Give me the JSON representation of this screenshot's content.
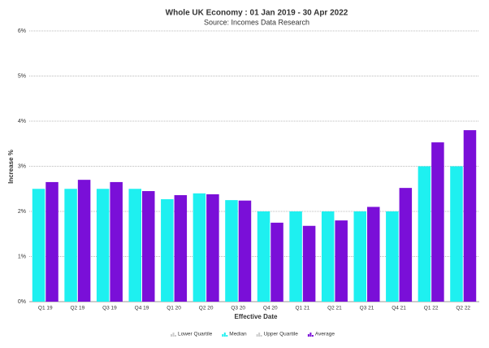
{
  "chart_data": {
    "type": "bar",
    "title": "Whole UK Economy : 01 Jan 2019 - 30 Apr 2022",
    "subtitle": "Source: Incomes Data Research",
    "x_label": "Effective Date",
    "y_label": "Increase %",
    "categories": [
      "Q1 19",
      "Q2 19",
      "Q3 19",
      "Q4 19",
      "Q1 20",
      "Q2 20",
      "Q3 20",
      "Q4 20",
      "Q1 21",
      "Q2 21",
      "Q3 21",
      "Q4 21",
      "Q1 22",
      "Q2 22"
    ],
    "series": [
      {
        "name": "Lower Quartile",
        "color": "#cccccc",
        "hidden": true
      },
      {
        "name": "Median",
        "color": "#1ef0f0",
        "values": [
          2.5,
          2.5,
          2.5,
          2.5,
          2.27,
          2.4,
          2.25,
          2.0,
          2.0,
          2.0,
          2.0,
          2.0,
          3.0,
          3.0
        ]
      },
      {
        "name": "Upper Quartile",
        "color": "#cccccc",
        "hidden": true
      },
      {
        "name": "Average",
        "color": "#7a0fd8",
        "values": [
          2.65,
          2.7,
          2.65,
          2.45,
          2.36,
          2.38,
          2.24,
          1.75,
          1.68,
          1.8,
          2.1,
          2.52,
          3.53,
          3.8
        ]
      }
    ],
    "ylim": [
      0,
      6
    ],
    "yticks": [
      {
        "value": 0,
        "label": "0%"
      },
      {
        "value": 1,
        "label": "1%"
      },
      {
        "value": 2,
        "label": "2%"
      },
      {
        "value": 3,
        "label": "3%"
      },
      {
        "value": 4,
        "label": "4%"
      },
      {
        "value": 5,
        "label": "5%"
      },
      {
        "value": 6,
        "label": "6%"
      }
    ],
    "grid": true,
    "legend": "bottom"
  }
}
